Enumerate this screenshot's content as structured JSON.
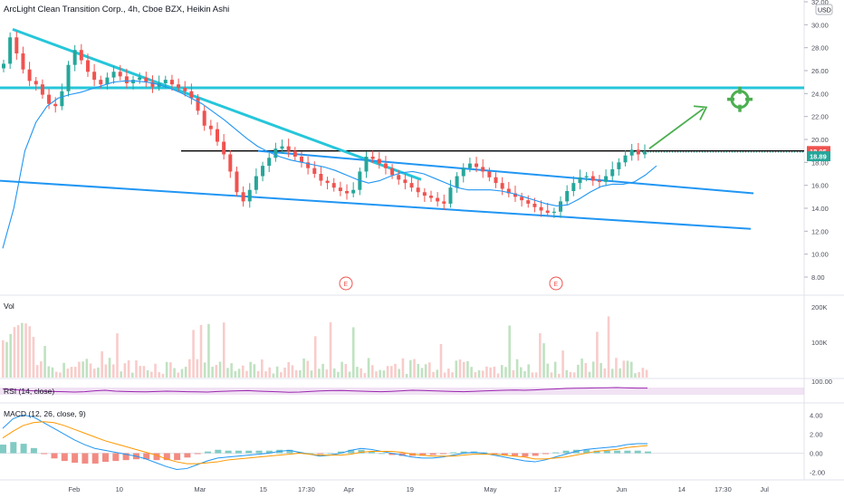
{
  "header": {
    "symbol": "ArcLight Clean Transition Corp., 4h, Cboe BZX, Heikin Ashi",
    "currency": "USD"
  },
  "colors": {
    "up": "#26a69a",
    "down": "#ef5350",
    "trend": "#2196f3",
    "trend_cyan": "#26c6da",
    "ma": "#2196f3",
    "rsi": "#9c27b0",
    "macd": "#2196f3",
    "signal": "#ff9800",
    "target": "#4caf50"
  },
  "chart_data": [
    {
      "type": "candlestick",
      "title": "ArcLight Clean Transition Corp., 4h, Cboe BZX, Heikin Ashi",
      "ylim": [
        6.5,
        32
      ],
      "y_ticks": [
        "32.00",
        "30.00",
        "28.00",
        "26.00",
        "24.00",
        "22.00",
        "20.00",
        "18.00",
        "16.00",
        "14.00",
        "12.00",
        "10.00",
        "8.00"
      ],
      "x_ticks": [
        "Feb",
        "10",
        "Mar",
        "15",
        "17:30",
        "Apr",
        "19",
        "May",
        "17",
        "Jun",
        "14",
        "17:30",
        "Jul"
      ],
      "price_labels": [
        {
          "value": "18.95",
          "color": "#ef5350"
        },
        {
          "value": "18.89",
          "color": "#26a69a"
        }
      ],
      "horizontal_lines": [
        {
          "value": 24.5,
          "color": "#26c6da"
        },
        {
          "value": 19.0,
          "color": "#000000"
        }
      ],
      "trendlines": [
        {
          "from": [
            "Jan 22",
            29.6
          ],
          "to": [
            "Apr 5",
            16.5
          ],
          "color": "#26c6da"
        },
        {
          "from": [
            "Mar 17",
            19.0
          ],
          "to": [
            "Jun 28",
            15.3
          ],
          "color": "#2196f3"
        },
        {
          "from": [
            "Jan 21",
            16.4
          ],
          "to": [
            "Jun 28",
            12.2
          ],
          "color": "#2196f3"
        }
      ],
      "earnings_markers": [
        "E",
        "E"
      ],
      "close_series": [
        26.6,
        28.9,
        27.5,
        26.1,
        25.1,
        24.8,
        23.9,
        23.1,
        22.9,
        24.2,
        26.5,
        27.8,
        26.9,
        25.9,
        25.2,
        24.8,
        25.4,
        25.9,
        25.5,
        24.9,
        25.2,
        25.4,
        25.0,
        24.6,
        24.9,
        25.2,
        24.8,
        24.5,
        24.2,
        23.6,
        22.5,
        21.2,
        20.9,
        19.8,
        18.7,
        17.2,
        15.4,
        14.6,
        15.6,
        16.8,
        17.7,
        18.4,
        19.2,
        19.4,
        19.0,
        18.5,
        18.0,
        17.5,
        17.0,
        16.4,
        16.2,
        15.8,
        15.5,
        15.3,
        15.6,
        17.2,
        18.5,
        18.3,
        17.9,
        17.5,
        16.9,
        16.5,
        16.2,
        15.8,
        15.4,
        15.1,
        14.9,
        14.6,
        14.4,
        15.8,
        16.8,
        17.5,
        17.9,
        17.6,
        17.2,
        16.7,
        16.2,
        15.7,
        15.3,
        15.0,
        14.7,
        14.4,
        14.1,
        13.8,
        13.6,
        13.7,
        14.6,
        15.5,
        16.2,
        16.7,
        16.8,
        16.4,
        16.3,
        16.8,
        17.4,
        18.0,
        18.6,
        19.1,
        18.7,
        18.9
      ],
      "ma_series": [
        10.5,
        14.0,
        19.0,
        21.5,
        22.9,
        23.6,
        23.9,
        24.1,
        24.4,
        24.7,
        25.0,
        25.1,
        25.1,
        25.0,
        24.8,
        24.5,
        24.1,
        23.6,
        23.1,
        22.4,
        21.7,
        20.9,
        20.1,
        19.4,
        18.9,
        18.5,
        18.2,
        18.0,
        17.8,
        17.6,
        17.3,
        16.9,
        16.5,
        16.2,
        16.4,
        16.8,
        17.1,
        17.2,
        17.0,
        16.6,
        16.2,
        15.8,
        15.6,
        15.6,
        15.6,
        15.5,
        15.3,
        15.0,
        14.7,
        14.4,
        14.2,
        14.3,
        14.8,
        15.4,
        15.9,
        16.1,
        16.1,
        16.3,
        16.9,
        17.7
      ],
      "volume": {
        "label": "Vol",
        "y_ticks": [
          "200K",
          "100K"
        ]
      }
    },
    {
      "type": "line",
      "title": "RSI (14, close)",
      "ylim": [
        0,
        100
      ],
      "y_ticks": [
        "100.00"
      ],
      "band": [
        30,
        70
      ],
      "series": [
        {
          "values": [
            62,
            58,
            55,
            52,
            50,
            48,
            47,
            45,
            47,
            52,
            55,
            50,
            48,
            47,
            46,
            48,
            50,
            49,
            47,
            46,
            45,
            48,
            50,
            52,
            53,
            50,
            48,
            46,
            44,
            45,
            48,
            51,
            53,
            54,
            52,
            50,
            48,
            47,
            49,
            52,
            55,
            54,
            52,
            50,
            48,
            47,
            49,
            51,
            53,
            55,
            56,
            55,
            57,
            60,
            62,
            65,
            66,
            67,
            68,
            69,
            70,
            68,
            67,
            67
          ]
        }
      ]
    },
    {
      "type": "line",
      "title": "MACD (12, 26, close, 9)",
      "ylim": [
        -2.6,
        4.6
      ],
      "y_ticks": [
        "4.00",
        "2.00",
        "0.00",
        "-2.00"
      ],
      "series": [
        {
          "values": [
            2.6,
            3.6,
            4.0,
            3.8,
            3.2,
            2.6,
            2.0,
            1.4,
            0.9,
            0.5,
            0.3,
            0.1,
            -0.1,
            -0.3,
            -0.6,
            -1.0,
            -1.4,
            -1.7,
            -1.6,
            -1.2,
            -0.8,
            -0.5,
            -0.4,
            -0.3,
            -0.2,
            -0.1,
            0.0,
            0.2,
            0.3,
            0.1,
            -0.1,
            -0.3,
            -0.2,
            0.0,
            0.3,
            0.5,
            0.4,
            0.2,
            0.0,
            -0.2,
            -0.4,
            -0.5,
            -0.5,
            -0.4,
            -0.2,
            0.0,
            0.1,
            0.0,
            -0.2,
            -0.4,
            -0.6,
            -0.8,
            -0.9,
            -0.7,
            -0.4,
            -0.1,
            0.2,
            0.4,
            0.5,
            0.6,
            0.7,
            0.9,
            1.0,
            1.0
          ]
        },
        {
          "values": [
            1.6,
            2.3,
            2.9,
            3.2,
            3.3,
            3.2,
            2.9,
            2.5,
            2.1,
            1.7,
            1.3,
            1.0,
            0.7,
            0.4,
            0.1,
            -0.2,
            -0.6,
            -0.9,
            -1.1,
            -1.1,
            -1.0,
            -0.9,
            -0.7,
            -0.6,
            -0.5,
            -0.4,
            -0.3,
            -0.2,
            -0.1,
            0.0,
            -0.1,
            -0.2,
            -0.2,
            -0.2,
            -0.1,
            0.1,
            0.2,
            0.2,
            0.2,
            0.1,
            -0.1,
            -0.2,
            -0.3,
            -0.3,
            -0.3,
            -0.2,
            -0.1,
            -0.1,
            -0.1,
            -0.2,
            -0.3,
            -0.4,
            -0.6,
            -0.6,
            -0.5,
            -0.4,
            -0.2,
            0.0,
            0.2,
            0.3,
            0.4,
            0.6,
            0.7,
            0.8
          ]
        }
      ]
    }
  ]
}
